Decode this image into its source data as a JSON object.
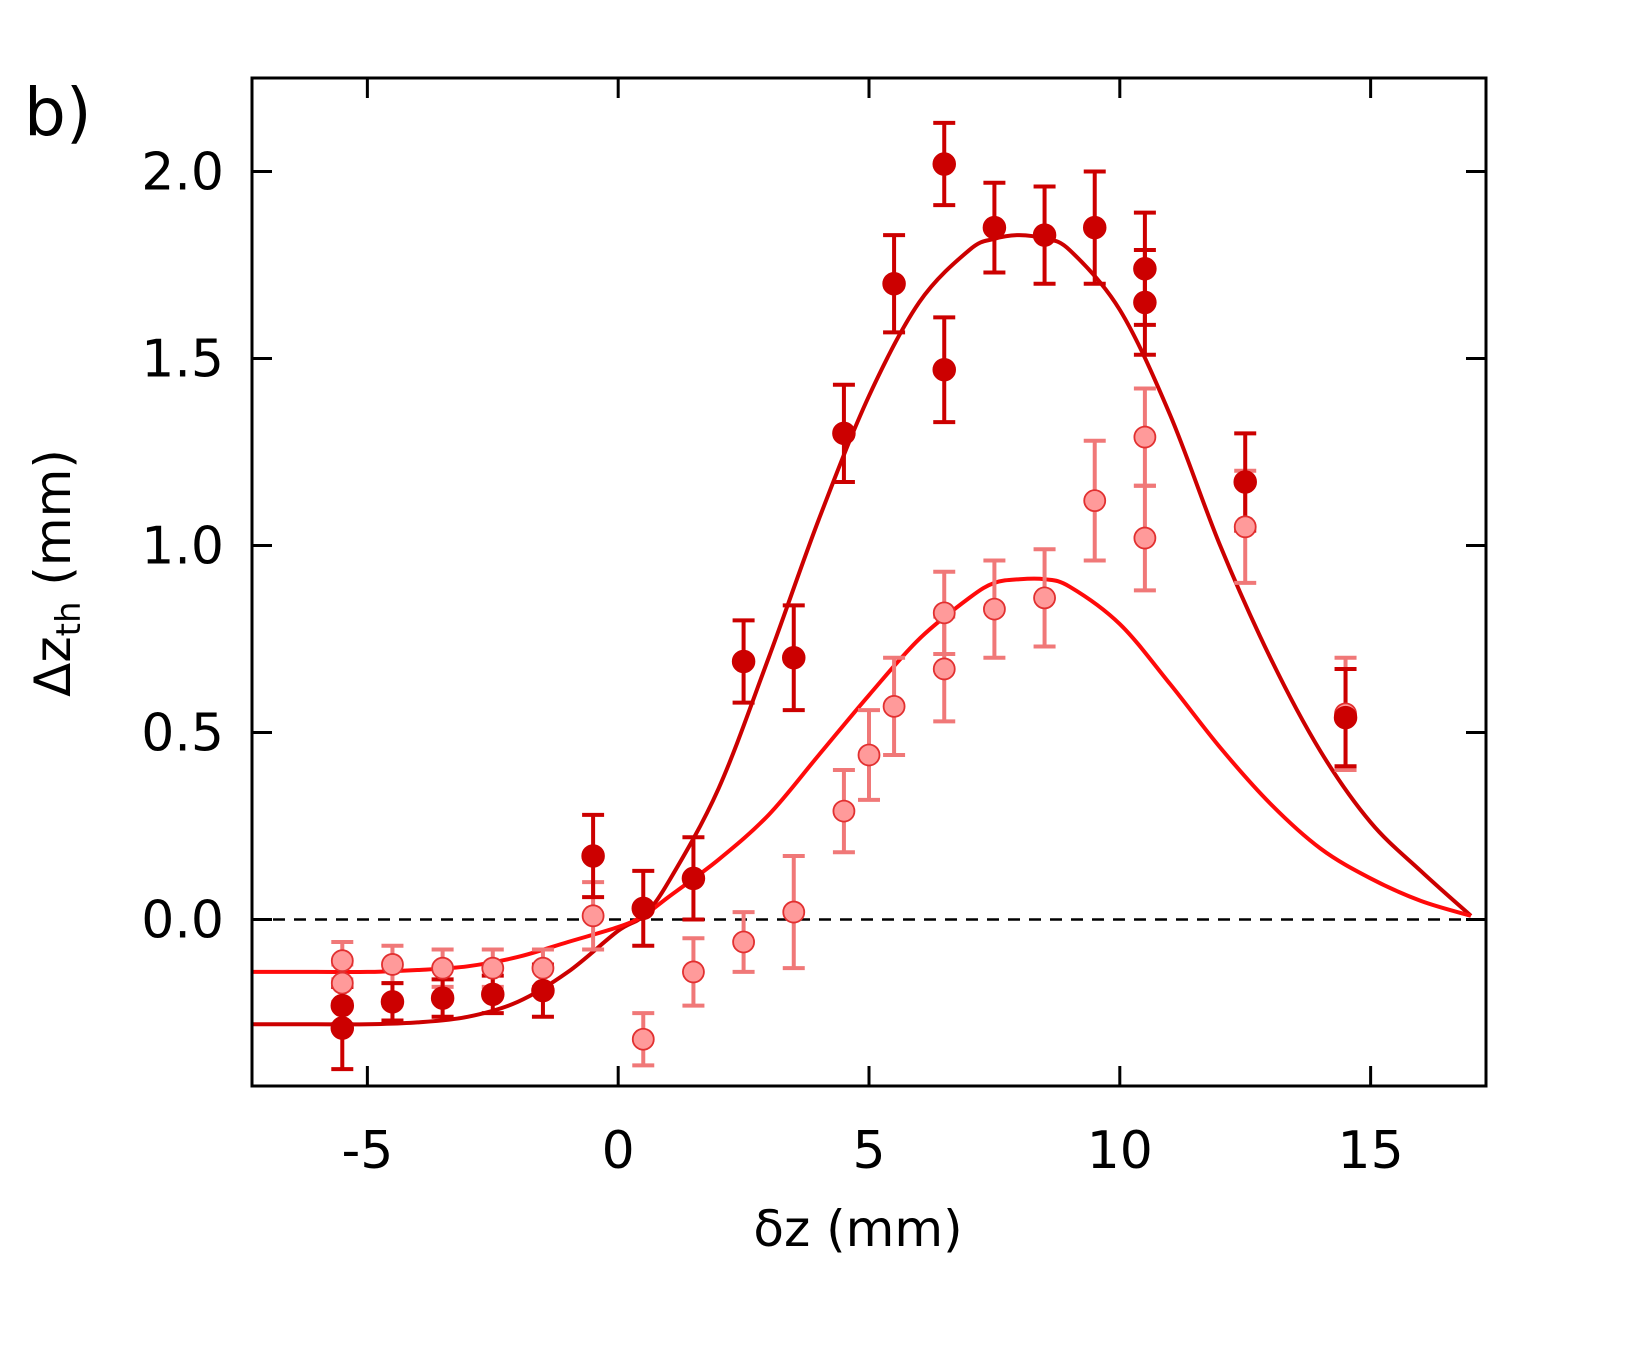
{
  "chart_data": {
    "type": "scatter",
    "panel_label": "b)",
    "xlabel": "δz (mm)",
    "ylabel_main": "Δz",
    "ylabel_sub": "th",
    "ylabel_unit": " (mm)",
    "xlim": [
      -7.3,
      17.3
    ],
    "ylim": [
      -0.445,
      2.25
    ],
    "xticks": [
      -5,
      0,
      5,
      10,
      15
    ],
    "xtick_labels": [
      "-5",
      "0",
      "5",
      "10",
      "15"
    ],
    "yticks": [
      0.0,
      0.5,
      1.0,
      1.5,
      2.0
    ],
    "ytick_labels": [
      "0.0",
      "0.5",
      "1.0",
      "1.5",
      "2.0"
    ],
    "reference_line": 0.0,
    "colors": {
      "dark_series": "#cc0000",
      "light_series": "#f07878",
      "light_fill": "#ff9a9a",
      "light_fit": "#ff0a0a"
    },
    "series": [
      {
        "name": "dark",
        "x": [
          -5.5,
          -5.5,
          -4.5,
          -3.5,
          -2.5,
          -1.5,
          -0.5,
          0.5,
          1.5,
          2.5,
          3.5,
          4.5,
          5.5,
          6.5,
          6.5,
          7.5,
          8.5,
          9.5,
          10.5,
          10.5,
          12.5,
          14.5
        ],
        "y": [
          -0.29,
          -0.23,
          -0.22,
          -0.21,
          -0.2,
          -0.19,
          0.17,
          0.03,
          0.11,
          0.69,
          0.7,
          1.3,
          1.7,
          2.02,
          1.47,
          1.85,
          1.83,
          1.85,
          1.74,
          1.65,
          1.17,
          0.54
        ],
        "err": [
          0.11,
          0.05,
          0.05,
          0.05,
          0.05,
          0.07,
          0.11,
          0.1,
          0.11,
          0.11,
          0.14,
          0.13,
          0.13,
          0.11,
          0.14,
          0.12,
          0.13,
          0.15,
          0.15,
          0.14,
          0.13,
          0.13
        ]
      },
      {
        "name": "light",
        "x": [
          -5.5,
          -5.5,
          -4.5,
          -3.5,
          -2.5,
          -1.5,
          -0.5,
          0.5,
          1.5,
          2.5,
          3.5,
          4.5,
          5.0,
          5.5,
          6.5,
          6.5,
          7.5,
          8.5,
          9.5,
          10.5,
          10.5,
          12.5,
          14.5
        ],
        "y": [
          -0.11,
          -0.17,
          -0.12,
          -0.13,
          -0.13,
          -0.13,
          0.01,
          -0.32,
          -0.14,
          -0.06,
          0.02,
          0.29,
          0.44,
          0.57,
          0.82,
          0.67,
          0.83,
          0.86,
          1.12,
          1.29,
          1.02,
          1.05,
          0.55
        ],
        "err": [
          0.05,
          0.05,
          0.05,
          0.05,
          0.05,
          0.05,
          0.09,
          0.07,
          0.09,
          0.08,
          0.15,
          0.11,
          0.12,
          0.13,
          0.11,
          0.14,
          0.13,
          0.13,
          0.16,
          0.13,
          0.14,
          0.15,
          0.15
        ]
      }
    ],
    "fits": [
      {
        "name": "dark-fit",
        "x": [
          -7.3,
          -6,
          -5,
          -4,
          -3,
          -2,
          -1,
          0,
          0.5,
          1,
          2,
          3,
          4,
          5,
          6,
          7,
          7.5,
          8,
          8.5,
          9,
          10,
          11,
          12,
          13,
          14,
          15,
          16,
          17
        ],
        "y": [
          -0.28,
          -0.28,
          -0.28,
          -0.275,
          -0.26,
          -0.22,
          -0.14,
          -0.03,
          0.01,
          0.1,
          0.35,
          0.7,
          1.07,
          1.4,
          1.65,
          1.79,
          1.82,
          1.83,
          1.82,
          1.79,
          1.63,
          1.35,
          1.0,
          0.7,
          0.45,
          0.26,
          0.13,
          0.01
        ]
      },
      {
        "name": "light-fit",
        "x": [
          -7.3,
          -6,
          -5,
          -4,
          -3,
          -2,
          -1,
          0,
          0.5,
          1,
          2,
          3,
          4,
          5,
          6,
          7,
          7.5,
          8,
          8.5,
          9,
          10,
          11,
          12,
          13,
          14,
          15,
          16,
          17
        ],
        "y": [
          -0.14,
          -0.14,
          -0.14,
          -0.135,
          -0.125,
          -0.1,
          -0.06,
          -0.02,
          0.01,
          0.06,
          0.16,
          0.28,
          0.44,
          0.6,
          0.75,
          0.86,
          0.9,
          0.91,
          0.91,
          0.89,
          0.79,
          0.63,
          0.46,
          0.31,
          0.19,
          0.11,
          0.05,
          0.01
        ]
      }
    ]
  }
}
